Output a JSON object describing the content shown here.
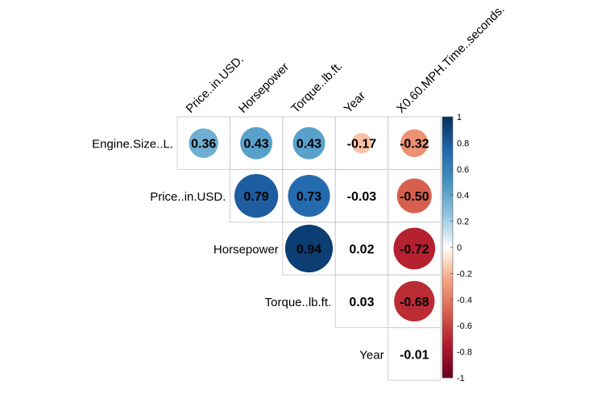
{
  "chart_data": {
    "type": "heatmap",
    "style": "corrplot-upper-circles",
    "variables": [
      "Engine.Size..L.",
      "Price..in.USD.",
      "Horsepower",
      "Torque..lb.ft.",
      "Year",
      "X0.60.MPH.Time..seconds."
    ],
    "row_labels": [
      "Engine.Size..L.",
      "Price..in.USD.",
      "Horsepower",
      "Torque..lb.ft.",
      "Year"
    ],
    "column_labels": [
      "Price..in.USD.",
      "Horsepower",
      "Torque..lb.ft.",
      "Year",
      "X0.60.MPH.Time..seconds."
    ],
    "matrix": [
      [
        0.36,
        0.43,
        0.43,
        -0.17,
        -0.32
      ],
      [
        null,
        0.79,
        0.73,
        -0.03,
        -0.5
      ],
      [
        null,
        null,
        0.94,
        0.02,
        -0.72
      ],
      [
        null,
        null,
        null,
        0.03,
        -0.68
      ],
      [
        null,
        null,
        null,
        null,
        -0.01
      ]
    ],
    "value_labels": [
      [
        "0.36",
        "0.43",
        "0.43",
        "-0.17",
        "-0.32"
      ],
      [
        null,
        "0.79",
        "0.73",
        "-0.03",
        "-0.50"
      ],
      [
        null,
        null,
        "0.94",
        "0.02",
        "-0.72"
      ],
      [
        null,
        null,
        null,
        "0.03",
        "-0.68"
      ],
      [
        null,
        null,
        null,
        null,
        "-0.01"
      ]
    ],
    "colorbar": {
      "range": [
        -1,
        1
      ],
      "ticks": [
        "1",
        "0.8",
        "0.6",
        "0.4",
        "0.2",
        "0",
        "-0.2",
        "-0.4",
        "-0.6",
        "-0.8",
        "-1"
      ],
      "tick_values": [
        1,
        0.8,
        0.6,
        0.4,
        0.2,
        0,
        -0.2,
        -0.4,
        -0.6,
        -0.8,
        -1
      ],
      "color_stops": [
        {
          "value": -1,
          "color": "#67001F"
        },
        {
          "value": -0.75,
          "color": "#B2182B"
        },
        {
          "value": -0.5,
          "color": "#D6604D"
        },
        {
          "value": -0.25,
          "color": "#F4A582"
        },
        {
          "value": -0.1,
          "color": "#FDDBC7"
        },
        {
          "value": 0,
          "color": "#FFFFFF"
        },
        {
          "value": 0.1,
          "color": "#D1E5F0"
        },
        {
          "value": 0.25,
          "color": "#92C5DE"
        },
        {
          "value": 0.5,
          "color": "#4393C3"
        },
        {
          "value": 0.75,
          "color": "#2166AC"
        },
        {
          "value": 1,
          "color": "#053061"
        }
      ],
      "placement": "right"
    },
    "grid_color": "#cfcfcf",
    "label_color": "#000000"
  }
}
